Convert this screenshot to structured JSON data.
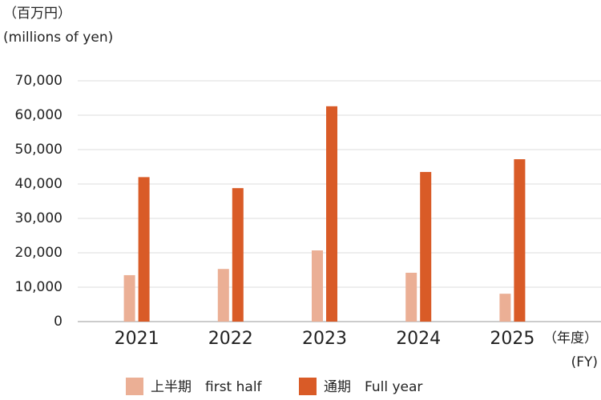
{
  "chart_data": {
    "type": "bar",
    "unit_label": "（百万円）",
    "unit_label_en": "(millions of yen)",
    "x_label": "（年度）",
    "x_label_en": "(FY)",
    "categories": [
      "2021",
      "2022",
      "2023",
      "2024",
      "2025"
    ],
    "series": [
      {
        "name": "上半期　first half",
        "color": "#ebaf95",
        "values": [
          13500,
          15300,
          20700,
          14200,
          8100
        ]
      },
      {
        "name": "通期　Full year",
        "color": "#d95b27",
        "values": [
          42000,
          38800,
          62600,
          43500,
          47200
        ]
      }
    ],
    "ylim": [
      0,
      70000
    ],
    "yticks": [
      0,
      {
        "value": 10000,
        "label": "10,000"
      },
      {
        "value": 20000,
        "label": "20,000"
      },
      {
        "value": 30000,
        "label": "30,000"
      },
      {
        "value": 40000,
        "label": "40,000"
      },
      {
        "value": 50000,
        "label": "50,000"
      },
      {
        "value": 60000,
        "label": "60,000"
      },
      {
        "value": 70000,
        "label": "70,000"
      }
    ],
    "grid": true
  }
}
